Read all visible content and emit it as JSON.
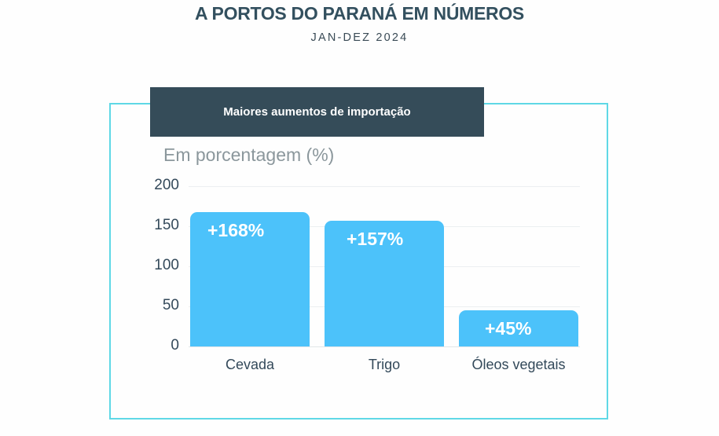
{
  "header": {
    "title": "A PORTOS DO PARANÁ EM NÚMEROS",
    "subtitle": "JAN-DEZ 2024"
  },
  "panel": {
    "banner": "Maiores aumentos de importação",
    "unit_label": "Em porcentagem (%)"
  },
  "colors": {
    "bar": "#4cc2fa",
    "banner_bg": "#354c59",
    "frame": "#5fd8e6",
    "title": "#33505f"
  },
  "chart_data": {
    "type": "bar",
    "title": "Maiores aumentos de importação",
    "subtitle": "Em porcentagem (%)",
    "categories": [
      "Cevada",
      "Trigo",
      "Óleos vegetais"
    ],
    "values": [
      168,
      157,
      45
    ],
    "data_labels": [
      "+168%",
      "+157%",
      "+45%"
    ],
    "xlabel": "",
    "ylabel": "Em porcentagem (%)",
    "ylim": [
      0,
      200
    ],
    "yticks": [
      0,
      50,
      100,
      150,
      200
    ],
    "ytick_labels": [
      "0",
      "50",
      "100",
      "150",
      "200"
    ],
    "grid": true,
    "legend": null
  }
}
